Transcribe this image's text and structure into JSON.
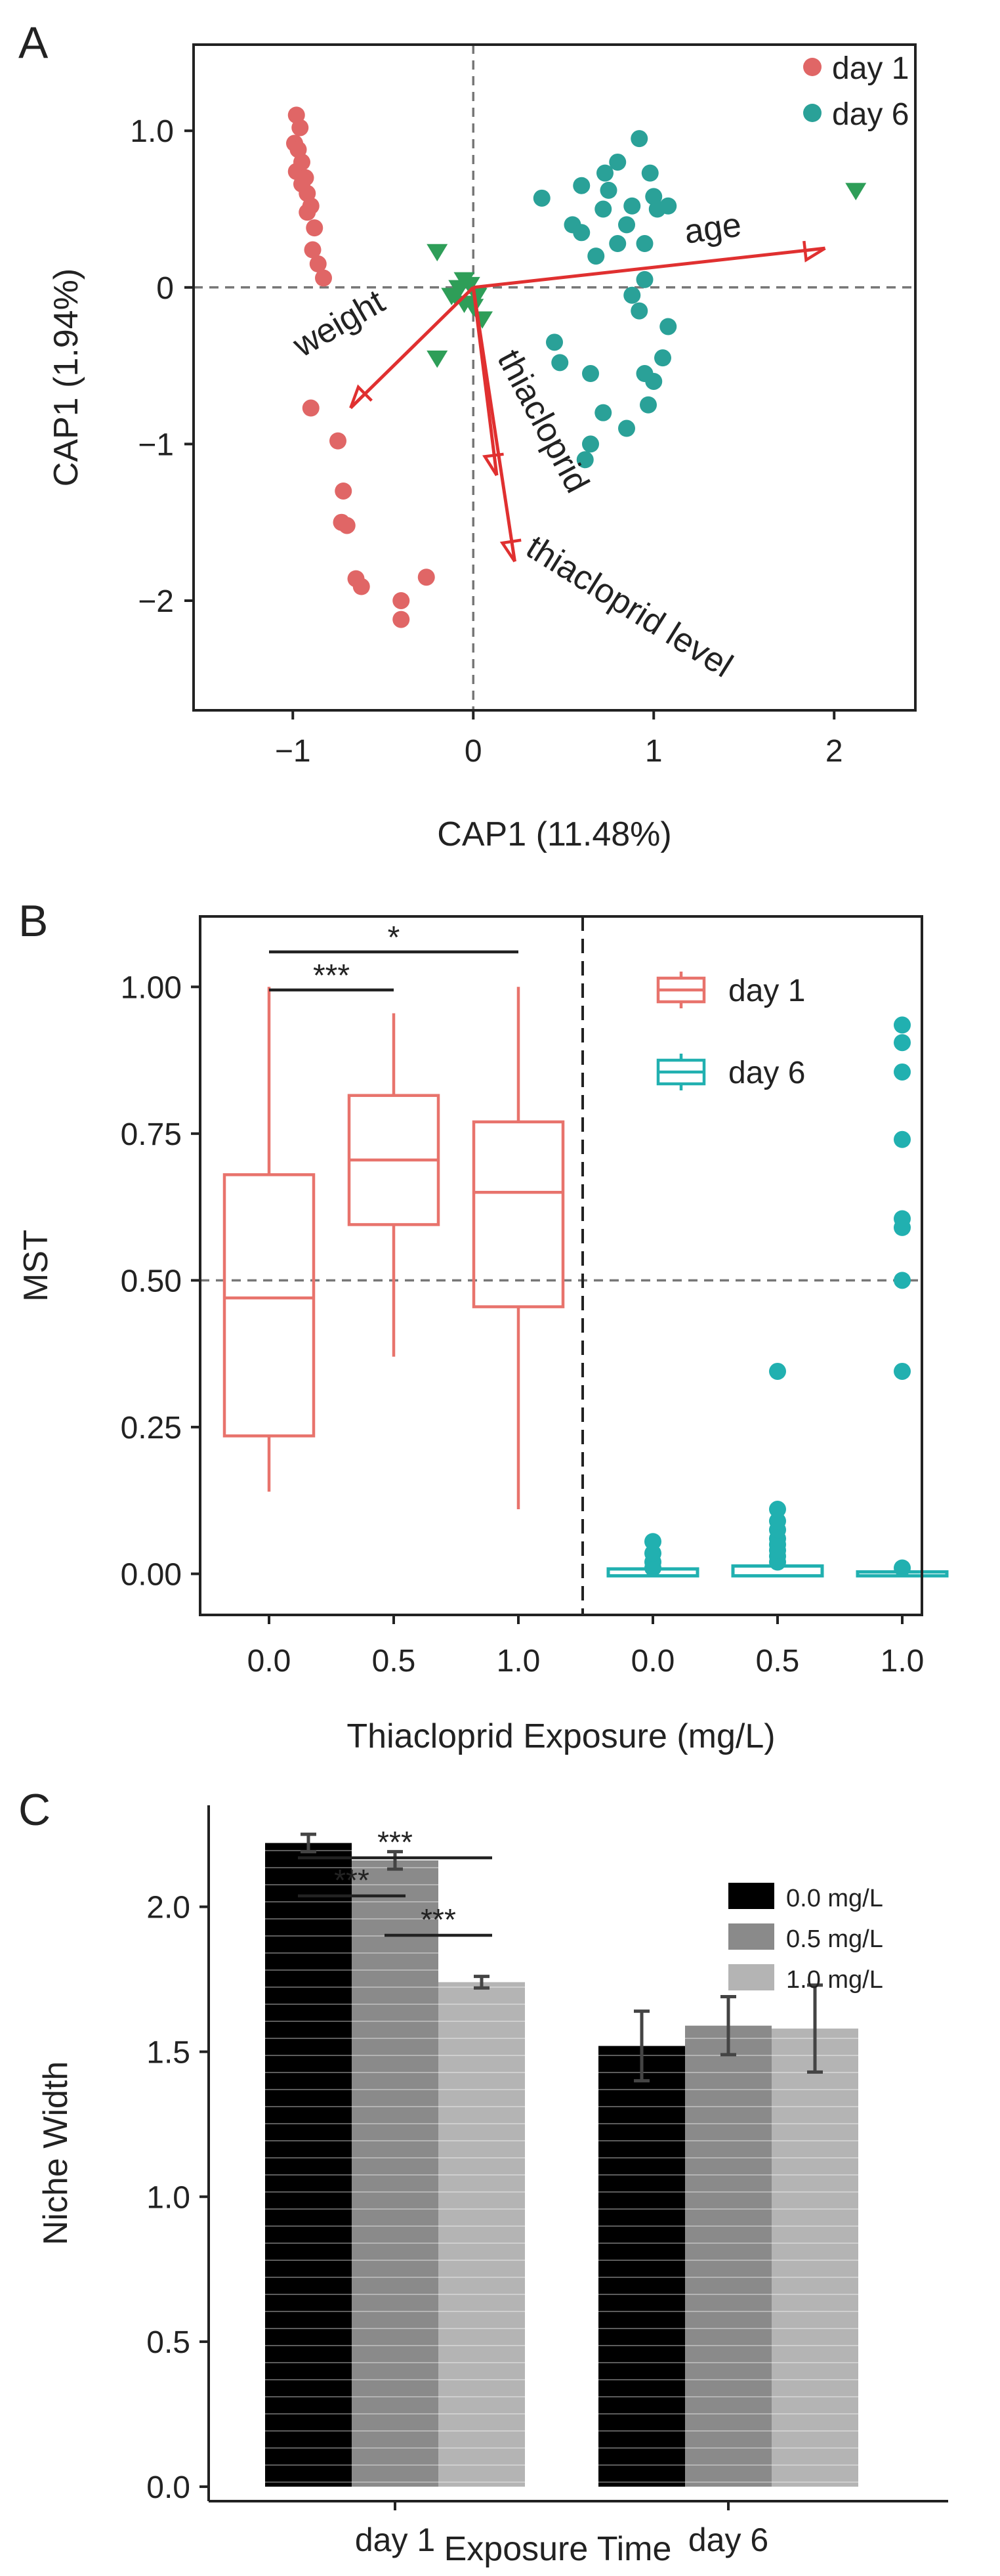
{
  "panels": {
    "a": {
      "letter": "A",
      "chart_data": {
        "type": "scatter",
        "xlabel": "CAP1 (11.48%)",
        "ylabel": "CAP1 (1.94%)",
        "xlim": [
          -1.55,
          2.45
        ],
        "ylim": [
          -2.7,
          1.55
        ],
        "xticks": [
          -1,
          0,
          1,
          2
        ],
        "xtick_labels": [
          "−1",
          "0",
          "1",
          "2"
        ],
        "yticks": [
          1.0,
          0,
          -1,
          -2
        ],
        "ytick_labels": [
          "1.0",
          "0",
          "−1",
          "−2"
        ],
        "legend": [
          "day 1",
          "day 6"
        ],
        "legend_position": "top-right",
        "reference_lines": {
          "x": 0,
          "y": 0
        },
        "series": [
          {
            "name": "day 1",
            "color": "#e06666",
            "marker": "circle",
            "points": [
              [
                -0.98,
                1.1
              ],
              [
                -0.96,
                1.02
              ],
              [
                -0.99,
                0.92
              ],
              [
                -0.97,
                0.88
              ],
              [
                -0.95,
                0.8
              ],
              [
                -0.98,
                0.74
              ],
              [
                -0.93,
                0.7
              ],
              [
                -0.95,
                0.66
              ],
              [
                -0.92,
                0.6
              ],
              [
                -0.9,
                0.52
              ],
              [
                -0.92,
                0.48
              ],
              [
                -0.88,
                0.38
              ],
              [
                -0.89,
                0.24
              ],
              [
                -0.86,
                0.15
              ],
              [
                -0.83,
                0.06
              ],
              [
                -0.9,
                -0.77
              ],
              [
                -0.75,
                -0.98
              ],
              [
                -0.72,
                -1.3
              ],
              [
                -0.73,
                -1.5
              ],
              [
                -0.7,
                -1.52
              ],
              [
                -0.65,
                -1.86
              ],
              [
                -0.62,
                -1.91
              ],
              [
                -0.26,
                -1.85
              ],
              [
                -0.4,
                -2.0
              ],
              [
                -0.4,
                -2.12
              ]
            ]
          },
          {
            "name": "day 6",
            "color": "#2aa198",
            "marker": "circle",
            "points": [
              [
                0.38,
                0.57
              ],
              [
                0.6,
                0.65
              ],
              [
                0.72,
                0.5
              ],
              [
                0.73,
                0.73
              ],
              [
                0.8,
                0.8
              ],
              [
                0.75,
                0.62
              ],
              [
                0.55,
                0.4
              ],
              [
                0.85,
                0.4
              ],
              [
                0.92,
                0.95
              ],
              [
                0.98,
                0.73
              ],
              [
                1.0,
                0.58
              ],
              [
                1.02,
                0.5
              ],
              [
                1.08,
                0.52
              ],
              [
                0.88,
                0.52
              ],
              [
                0.95,
                0.28
              ],
              [
                0.8,
                0.28
              ],
              [
                0.6,
                0.35
              ],
              [
                0.68,
                0.2
              ],
              [
                0.95,
                0.05
              ],
              [
                0.88,
                -0.05
              ],
              [
                0.92,
                -0.15
              ],
              [
                1.08,
                -0.25
              ],
              [
                1.05,
                -0.45
              ],
              [
                1.0,
                -0.6
              ],
              [
                0.45,
                -0.35
              ],
              [
                0.48,
                -0.48
              ],
              [
                0.65,
                -0.55
              ],
              [
                0.95,
                -0.55
              ],
              [
                0.97,
                -0.75
              ],
              [
                0.72,
                -0.8
              ],
              [
                0.65,
                -1.0
              ],
              [
                0.62,
                -1.1
              ],
              [
                0.85,
                -0.9
              ]
            ]
          },
          {
            "name": "",
            "color": "#2e9e58",
            "marker": "triangle-down",
            "points": [
              [
                -0.2,
                0.23
              ],
              [
                2.12,
                0.62
              ],
              [
                -0.05,
                0.05
              ],
              [
                -0.08,
                0.0
              ],
              [
                -0.1,
                -0.05
              ],
              [
                -0.05,
                -0.1
              ],
              [
                0.0,
                -0.12
              ],
              [
                0.05,
                -0.2
              ],
              [
                -0.2,
                -0.45
              ],
              [
                -0.02,
                0.02
              ],
              [
                0.02,
                -0.05
              ],
              [
                -0.12,
                -0.05
              ]
            ]
          }
        ],
        "arrows": [
          {
            "label": "age",
            "from": [
              0,
              0
            ],
            "to": [
              1.95,
              0.25
            ],
            "color": "#e03030"
          },
          {
            "label": "weight",
            "from": [
              0,
              0
            ],
            "to": [
              -0.68,
              -0.77
            ],
            "color": "#e03030"
          },
          {
            "label": "thiacloprid",
            "from": [
              0,
              0
            ],
            "to": [
              0.13,
              -1.2
            ],
            "color": "#e03030"
          },
          {
            "label": "thiacloprid level",
            "from": [
              0,
              0
            ],
            "to": [
              0.23,
              -1.75
            ],
            "color": "#e03030"
          }
        ]
      }
    },
    "b": {
      "letter": "B",
      "chart_data": {
        "type": "boxplot",
        "xlabel": "Thiacloprid Exposure (mg/L)",
        "ylabel": "MST",
        "ylim": [
          -0.07,
          1.12
        ],
        "yticks": [
          0,
          0.25,
          0.5,
          0.75,
          1.0
        ],
        "ytick_labels": [
          "0.00",
          "0.25",
          "0.50",
          "0.75",
          "1.00"
        ],
        "categories": [
          "0.0",
          "0.5",
          "1.0",
          "0.0",
          "0.5",
          "1.0"
        ],
        "legend": [
          "day 1",
          "day 6"
        ],
        "reference_lines": {
          "y": 0.5
        },
        "series": [
          {
            "name": "day 1",
            "color": "#e8736c",
            "boxes": [
              {
                "category_index": 0,
                "min": 0.14,
                "q1": 0.235,
                "median": 0.47,
                "q3": 0.68,
                "max": 1.0,
                "outliers": []
              },
              {
                "category_index": 1,
                "min": 0.37,
                "q1": 0.595,
                "median": 0.705,
                "q3": 0.815,
                "max": 0.955,
                "outliers": []
              },
              {
                "category_index": 2,
                "min": 0.11,
                "q1": 0.455,
                "median": 0.65,
                "q3": 0.77,
                "max": 1.0,
                "outliers": []
              }
            ]
          },
          {
            "name": "day 6",
            "color": "#21b0b0",
            "boxes": [
              {
                "category_index": 3,
                "min": 0.0,
                "q1": 0.0,
                "median": 0.0,
                "q3": 0.005,
                "max": 0.01,
                "outliers": [
                  0.01,
                  0.02,
                  0.035,
                  0.055
                ]
              },
              {
                "category_index": 4,
                "min": 0.0,
                "q1": 0.0,
                "median": 0.0,
                "q3": 0.01,
                "max": 0.02,
                "outliers": [
                  0.02,
                  0.03,
                  0.04,
                  0.05,
                  0.06,
                  0.075,
                  0.09,
                  0.11,
                  0.345
                ]
              },
              {
                "category_index": 5,
                "min": 0.0,
                "q1": 0.0,
                "median": 0.0,
                "q3": 0.0,
                "max": 0.0,
                "outliers": [
                  0.01,
                  0.345,
                  0.5,
                  0.59,
                  0.605,
                  0.74,
                  0.855,
                  0.905,
                  0.935
                ]
              }
            ]
          }
        ],
        "significance": [
          {
            "from_index": 0,
            "to_index": 2,
            "label": "*"
          },
          {
            "from_index": 0,
            "to_index": 1,
            "label": "***"
          }
        ]
      }
    },
    "c": {
      "letter": "C",
      "chart_data": {
        "type": "bar",
        "xlabel": "Exposure Time",
        "ylabel": "Niche Width",
        "categories": [
          "day 1",
          "day 6"
        ],
        "ylim": [
          -0.05,
          2.35
        ],
        "yticks": [
          0.0,
          0.5,
          1.0,
          1.5,
          2.0
        ],
        "ytick_labels": [
          "0.0",
          "0.5",
          "1.0",
          "1.5",
          "2.0"
        ],
        "legend": [
          "0.0 mg/L",
          "0.5 mg/L",
          "1.0 mg/L"
        ],
        "legend_position": "top-right",
        "series": [
          {
            "name": "0.0 mg/L",
            "color": "#000000",
            "values": [
              2.22,
              1.52
            ],
            "errors": [
              0.03,
              0.12
            ]
          },
          {
            "name": "0.5 mg/L",
            "color": "#8a8a8a",
            "values": [
              2.16,
              1.59
            ],
            "errors": [
              0.03,
              0.1
            ]
          },
          {
            "name": "1.0 mg/L",
            "color": "#b4b4b4",
            "values": [
              1.74,
              1.58
            ],
            "errors": [
              0.02,
              0.15
            ]
          }
        ],
        "significance": [
          {
            "from_series": 0,
            "to_series": 2,
            "label": "***"
          },
          {
            "from_series": 0,
            "to_series": 1,
            "label": "***"
          },
          {
            "from_series": 1,
            "to_series": 2,
            "label": "***"
          }
        ]
      }
    }
  }
}
